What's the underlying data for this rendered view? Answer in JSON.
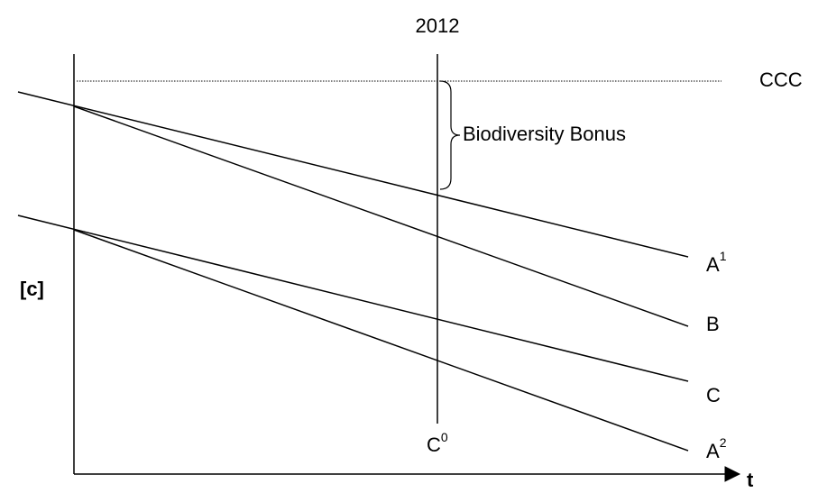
{
  "axes": {
    "y_label": "[c]",
    "x_label": "t"
  },
  "year_marker": {
    "label": "2012",
    "base_label": "C",
    "base_sup": "0"
  },
  "threshold": {
    "label": "CCC"
  },
  "bonus": {
    "label": "Biodiversity Bonus"
  },
  "lines": [
    {
      "label": "A",
      "sup": "1"
    },
    {
      "label": "B"
    },
    {
      "label": "C"
    },
    {
      "label": "A",
      "sup": "2"
    }
  ]
}
